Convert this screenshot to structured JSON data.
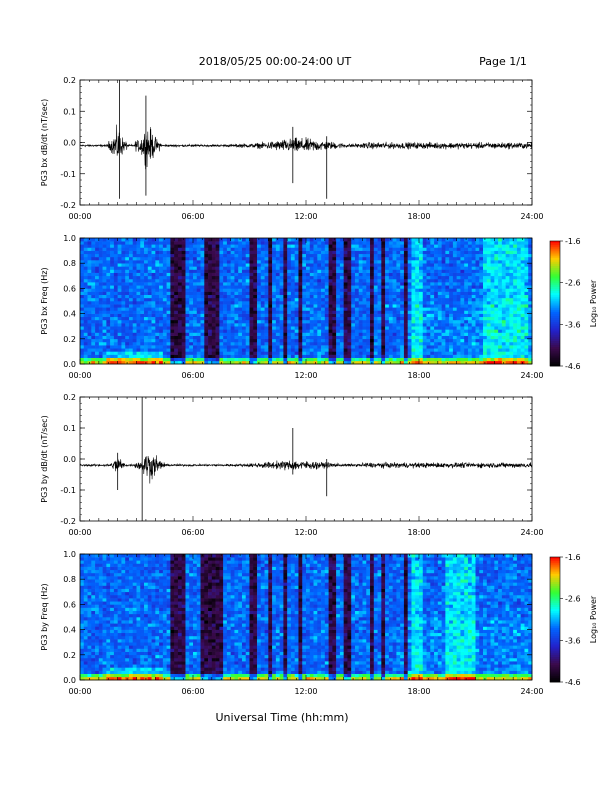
{
  "page": {
    "title": "2018/05/25  00:00-24:00 UT",
    "page_label": "Page 1/1",
    "x_axis_label": "Universal Time (hh:mm)"
  },
  "colorbar": {
    "label": "Log₁₀ Power",
    "ticks": [
      "-1.6",
      "-2.6",
      "-3.6",
      "-4.6"
    ],
    "colors": [
      "#ff0000",
      "#ffcc00",
      "#33ff33",
      "#00ffff",
      "#0066ff",
      "#2222cc",
      "#3b0a4e",
      "#000000"
    ]
  },
  "chart_data": [
    {
      "type": "line",
      "title": "",
      "xlabel": "",
      "ylabel": "PG3 bx dB/dt (nT/sec)",
      "x_ticks": [
        "00:00",
        "06:00",
        "12:00",
        "18:00",
        "24:00"
      ],
      "y_ticks": [
        "0.2",
        "0.1",
        "0.0",
        "-0.1",
        "-0.2"
      ],
      "xlim": [
        0,
        24
      ],
      "ylim": [
        -0.2,
        0.2
      ],
      "baseline": -0.01,
      "activity_windows": [
        {
          "start": 1.5,
          "end": 2.5,
          "amplitude": 0.07
        },
        {
          "start": 2.9,
          "end": 4.3,
          "amplitude": 0.08
        },
        {
          "start": 8.3,
          "end": 15.0,
          "amplitude": 0.03
        },
        {
          "start": 15.0,
          "end": 24.0,
          "amplitude": 0.012
        }
      ],
      "spikes": [
        {
          "t": 2.1,
          "max": 0.2,
          "min": -0.18
        },
        {
          "t": 3.5,
          "max": 0.15,
          "min": -0.17
        },
        {
          "t": 11.3,
          "max": 0.05,
          "min": -0.13
        },
        {
          "t": 13.1,
          "max": 0.02,
          "min": -0.18
        }
      ]
    },
    {
      "type": "heatmap",
      "title": "",
      "xlabel": "",
      "ylabel": "PG3 bx Freq (Hz)",
      "x_ticks": [
        "00:00",
        "06:00",
        "12:00",
        "18:00",
        "24:00"
      ],
      "y_ticks": [
        "1.0",
        "0.8",
        "0.6",
        "0.4",
        "0.2",
        "0.0"
      ],
      "xlim": [
        0,
        24
      ],
      "ylim": [
        0,
        1.0
      ],
      "zlabel": "Log₁₀ Power",
      "zlim": [
        -4.6,
        -1.6
      ],
      "dark_bands_hours": [
        [
          4.9,
          5.5
        ],
        [
          6.7,
          7.3
        ],
        [
          9.1,
          9.3
        ],
        [
          10.0,
          10.2
        ],
        [
          10.9,
          11.1
        ],
        [
          11.6,
          11.8
        ],
        [
          13.3,
          13.5
        ],
        [
          14.1,
          14.3
        ],
        [
          15.3,
          15.5
        ],
        [
          16.0,
          16.2
        ],
        [
          17.2,
          17.4
        ]
      ],
      "bright_bands_hours": [
        [
          17.6,
          18.2
        ],
        [
          21.5,
          23.8
        ]
      ]
    },
    {
      "type": "line",
      "title": "",
      "xlabel": "",
      "ylabel": "PG3 by dB/dt (nT/sec)",
      "x_ticks": [
        "00:00",
        "06:00",
        "12:00",
        "18:00",
        "24:00"
      ],
      "y_ticks": [
        "0.2",
        "0.1",
        "0.0",
        "-0.1",
        "-0.2"
      ],
      "xlim": [
        0,
        24
      ],
      "ylim": [
        -0.2,
        0.2
      ],
      "baseline": -0.02,
      "activity_windows": [
        {
          "start": 1.6,
          "end": 2.4,
          "amplitude": 0.04
        },
        {
          "start": 2.9,
          "end": 4.5,
          "amplitude": 0.06
        },
        {
          "start": 7.8,
          "end": 15.0,
          "amplitude": 0.02
        },
        {
          "start": 15.0,
          "end": 24.0,
          "amplitude": 0.01
        }
      ],
      "spikes": [
        {
          "t": 2.0,
          "max": 0.02,
          "min": -0.1
        },
        {
          "t": 3.3,
          "max": 0.2,
          "min": -0.2
        },
        {
          "t": 11.3,
          "max": 0.1,
          "min": -0.05
        },
        {
          "t": 13.1,
          "max": 0.0,
          "min": -0.12
        }
      ]
    },
    {
      "type": "heatmap",
      "title": "",
      "xlabel": "Universal Time (hh:mm)",
      "ylabel": "PG3 by Freq (Hz)",
      "x_ticks": [
        "00:00",
        "06:00",
        "12:00",
        "18:00",
        "24:00"
      ],
      "y_ticks": [
        "1.0",
        "0.8",
        "0.6",
        "0.4",
        "0.2",
        "0.0"
      ],
      "xlim": [
        0,
        24
      ],
      "ylim": [
        0,
        1.0
      ],
      "zlabel": "Log₁₀ Power",
      "zlim": [
        -4.6,
        -1.6
      ],
      "dark_bands_hours": [
        [
          4.8,
          5.6
        ],
        [
          6.5,
          7.5
        ],
        [
          9.1,
          9.3
        ],
        [
          10.0,
          10.2
        ],
        [
          10.9,
          11.1
        ],
        [
          11.6,
          11.8
        ],
        [
          13.3,
          13.5
        ],
        [
          14.1,
          14.3
        ],
        [
          15.3,
          15.5
        ],
        [
          16.0,
          16.2
        ],
        [
          17.2,
          17.4
        ]
      ],
      "bright_bands_hours": [
        [
          17.6,
          18.2
        ],
        [
          19.5,
          21.0
        ]
      ]
    }
  ]
}
